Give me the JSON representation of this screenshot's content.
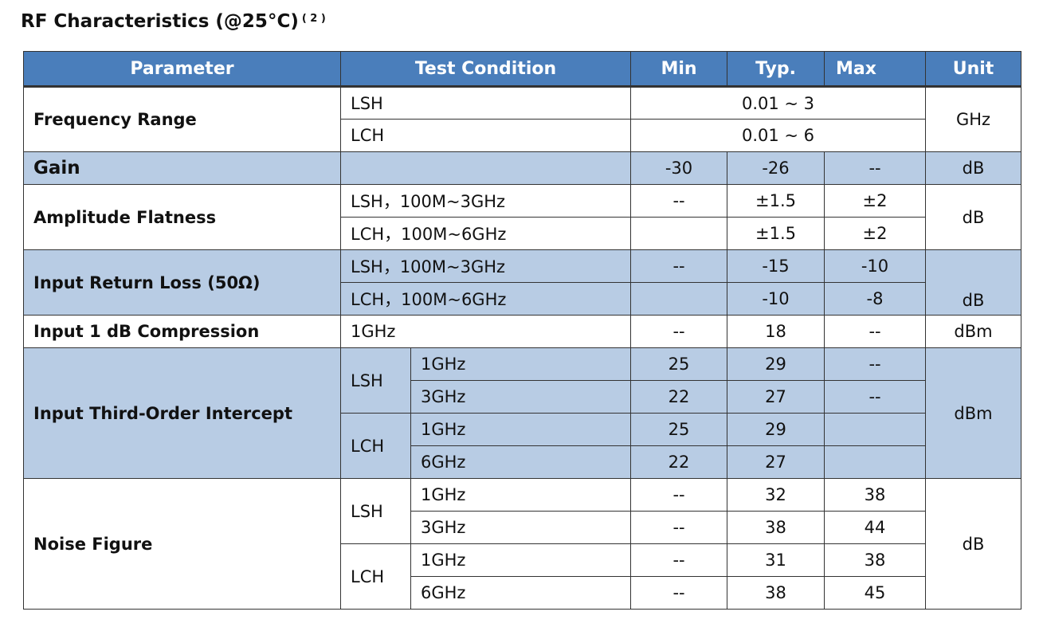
{
  "title": {
    "text": "RF Characteristics (@25°C)",
    "note": "( 2 )"
  },
  "headers": {
    "parameter": "Parameter",
    "condition": "Test Condition",
    "min": "Min",
    "typ": "Typ.",
    "max": "Max",
    "unit": "Unit"
  },
  "colors": {
    "header_bg": "#4a7ebb",
    "shade_bg": "#b8cce4",
    "header_text": "#ffffff"
  },
  "rows": {
    "freq": {
      "param": "Frequency Range",
      "unit": "GHz",
      "lsh": {
        "cond": "LSH",
        "range": "0.01 ~ 3"
      },
      "lch": {
        "cond": "LCH",
        "range": "0.01 ~ 6"
      }
    },
    "gain": {
      "param": "Gain",
      "min": "-30",
      "typ": "-26",
      "max": "--",
      "unit": "dB"
    },
    "flat": {
      "param": "Amplitude Flatness",
      "unit": "dB",
      "r1": {
        "cond": "LSH，100M~3GHz",
        "min": "--",
        "typ": "±1.5",
        "max": "±2"
      },
      "r2": {
        "cond": "LCH，100M~6GHz",
        "typ": "±1.5",
        "max": "±2"
      }
    },
    "irl": {
      "param": "Input Return Loss (50Ω)",
      "unit": "dB",
      "r1": {
        "cond": "LSH，100M~3GHz",
        "min": "--",
        "typ": "-15",
        "max": "-10"
      },
      "r2": {
        "cond": "LCH，100M~6GHz",
        "typ": "-10",
        "max": "-8"
      }
    },
    "p1db": {
      "param": "Input 1 dB Compression",
      "cond": "1GHz",
      "min": "--",
      "typ": "18",
      "max": "--",
      "unit": "dBm"
    },
    "iip3": {
      "param": "Input Third-Order Intercept",
      "unit": "dBm",
      "lsh": {
        "mode": "LSH",
        "a": {
          "freq": "1GHz",
          "min": "25",
          "typ": "29",
          "max": "--"
        },
        "b": {
          "freq": "3GHz",
          "min": "22",
          "typ": "27",
          "max": "--"
        }
      },
      "lch": {
        "mode": "LCH",
        "a": {
          "freq": "1GHz",
          "min": "25",
          "typ": "29"
        },
        "b": {
          "freq": "6GHz",
          "min": "22",
          "typ": "27"
        }
      }
    },
    "nf": {
      "param": "Noise Figure",
      "unit": "dB",
      "lsh": {
        "mode": "LSH",
        "a": {
          "freq": "1GHz",
          "min": "--",
          "typ": "32",
          "max": "38"
        },
        "b": {
          "freq": "3GHz",
          "min": "--",
          "typ": "38",
          "max": "44"
        }
      },
      "lch": {
        "mode": "LCH",
        "a": {
          "freq": "1GHz",
          "min": "--",
          "typ": "31",
          "max": "38"
        },
        "b": {
          "freq": "6GHz",
          "min": "--",
          "typ": "38",
          "max": "45"
        }
      }
    }
  }
}
